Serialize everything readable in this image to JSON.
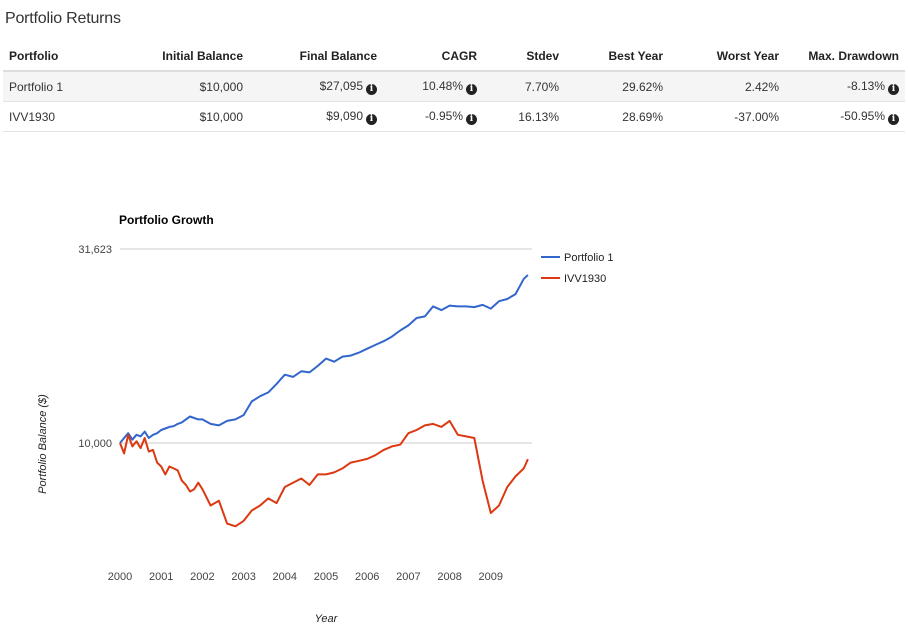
{
  "section_title": "Portfolio Returns",
  "table": {
    "headers": [
      "Portfolio",
      "Initial Balance",
      "Final Balance",
      "CAGR",
      "Stdev",
      "Best Year",
      "Worst Year",
      "Max. Drawdown"
    ],
    "rows": [
      {
        "portfolio": "Portfolio 1",
        "initial": "$10,000",
        "final": "$27,095",
        "cagr": "10.48%",
        "stdev": "7.70%",
        "best": "29.62%",
        "worst": "2.42%",
        "drawdown": "-8.13%"
      },
      {
        "portfolio": "IVV1930",
        "initial": "$10,000",
        "final": "$9,090",
        "cagr": "-0.95%",
        "stdev": "16.13%",
        "best": "28.69%",
        "worst": "-37.00%",
        "drawdown": "-50.95%"
      }
    ],
    "info_icon": "info-circle-icon"
  },
  "chart_data": {
    "type": "line",
    "title": "Portfolio Growth",
    "xlabel": "Year",
    "ylabel": "Portfolio Balance ($)",
    "y_scale": "log",
    "y_ticks": [
      10000,
      31623
    ],
    "y_tick_labels": [
      "10,000",
      "31,623"
    ],
    "x_ticks": [
      "2000",
      "2001",
      "2002",
      "2003",
      "2004",
      "2005",
      "2006",
      "2007",
      "2008",
      "2009"
    ],
    "xlim": [
      2000.0,
      2010.0
    ],
    "grid": true,
    "legend_position": "right",
    "series": [
      {
        "name": "Portfolio 1",
        "color": "#3366cc",
        "x": [
          2000.0,
          2000.1,
          2000.2,
          2000.3,
          2000.4,
          2000.5,
          2000.6,
          2000.7,
          2000.8,
          2000.9,
          2001.0,
          2001.1,
          2001.2,
          2001.3,
          2001.4,
          2001.5,
          2001.6,
          2001.7,
          2001.8,
          2001.9,
          2002.0,
          2002.2,
          2002.4,
          2002.6,
          2002.8,
          2003.0,
          2003.2,
          2003.4,
          2003.6,
          2003.8,
          2004.0,
          2004.2,
          2004.4,
          2004.6,
          2004.8,
          2005.0,
          2005.2,
          2005.4,
          2005.6,
          2005.8,
          2006.0,
          2006.2,
          2006.4,
          2006.6,
          2006.8,
          2007.0,
          2007.2,
          2007.4,
          2007.6,
          2007.8,
          2008.0,
          2008.2,
          2008.4,
          2008.6,
          2008.8,
          2009.0,
          2009.2,
          2009.4,
          2009.6,
          2009.8,
          2009.9
        ],
        "values": [
          10000,
          10300,
          10600,
          10200,
          10500,
          10400,
          10700,
          10300,
          10500,
          10600,
          10800,
          10900,
          11000,
          11050,
          11200,
          11300,
          11500,
          11700,
          11600,
          11500,
          11500,
          11200,
          11100,
          11400,
          11500,
          11800,
          12800,
          13200,
          13500,
          14200,
          15000,
          14800,
          15300,
          15200,
          15800,
          16500,
          16200,
          16700,
          16800,
          17100,
          17500,
          17900,
          18300,
          18800,
          19500,
          20100,
          21000,
          21200,
          22500,
          22000,
          22600,
          22500,
          22500,
          22400,
          22700,
          22200,
          23200,
          23500,
          24200,
          26500,
          27095
        ]
      },
      {
        "name": "IVV1930",
        "color": "#dc3912",
        "x": [
          2000.0,
          2000.1,
          2000.2,
          2000.3,
          2000.4,
          2000.5,
          2000.6,
          2000.7,
          2000.8,
          2000.9,
          2001.0,
          2001.1,
          2001.2,
          2001.3,
          2001.4,
          2001.5,
          2001.6,
          2001.7,
          2001.8,
          2001.9,
          2002.0,
          2002.2,
          2002.4,
          2002.6,
          2002.8,
          2003.0,
          2003.2,
          2003.4,
          2003.6,
          2003.8,
          2004.0,
          2004.2,
          2004.4,
          2004.6,
          2004.8,
          2005.0,
          2005.2,
          2005.4,
          2005.6,
          2005.8,
          2006.0,
          2006.2,
          2006.4,
          2006.6,
          2006.8,
          2007.0,
          2007.2,
          2007.4,
          2007.6,
          2007.8,
          2008.0,
          2008.2,
          2008.4,
          2008.6,
          2008.8,
          2009.0,
          2009.2,
          2009.4,
          2009.6,
          2009.8,
          2009.9
        ],
        "values": [
          10000,
          9400,
          10500,
          9800,
          10100,
          9700,
          10300,
          9500,
          9600,
          8900,
          8700,
          8300,
          8700,
          8600,
          8500,
          8000,
          7800,
          7500,
          7600,
          7900,
          7600,
          6900,
          7100,
          6200,
          6100,
          6300,
          6700,
          6900,
          7200,
          7000,
          7700,
          7900,
          8100,
          7800,
          8300,
          8300,
          8400,
          8600,
          8900,
          9000,
          9100,
          9300,
          9600,
          9800,
          9900,
          10600,
          10800,
          11100,
          11200,
          11000,
          11400,
          10500,
          10400,
          10300,
          8000,
          6600,
          6900,
          7700,
          8200,
          8600,
          9090
        ]
      }
    ]
  }
}
